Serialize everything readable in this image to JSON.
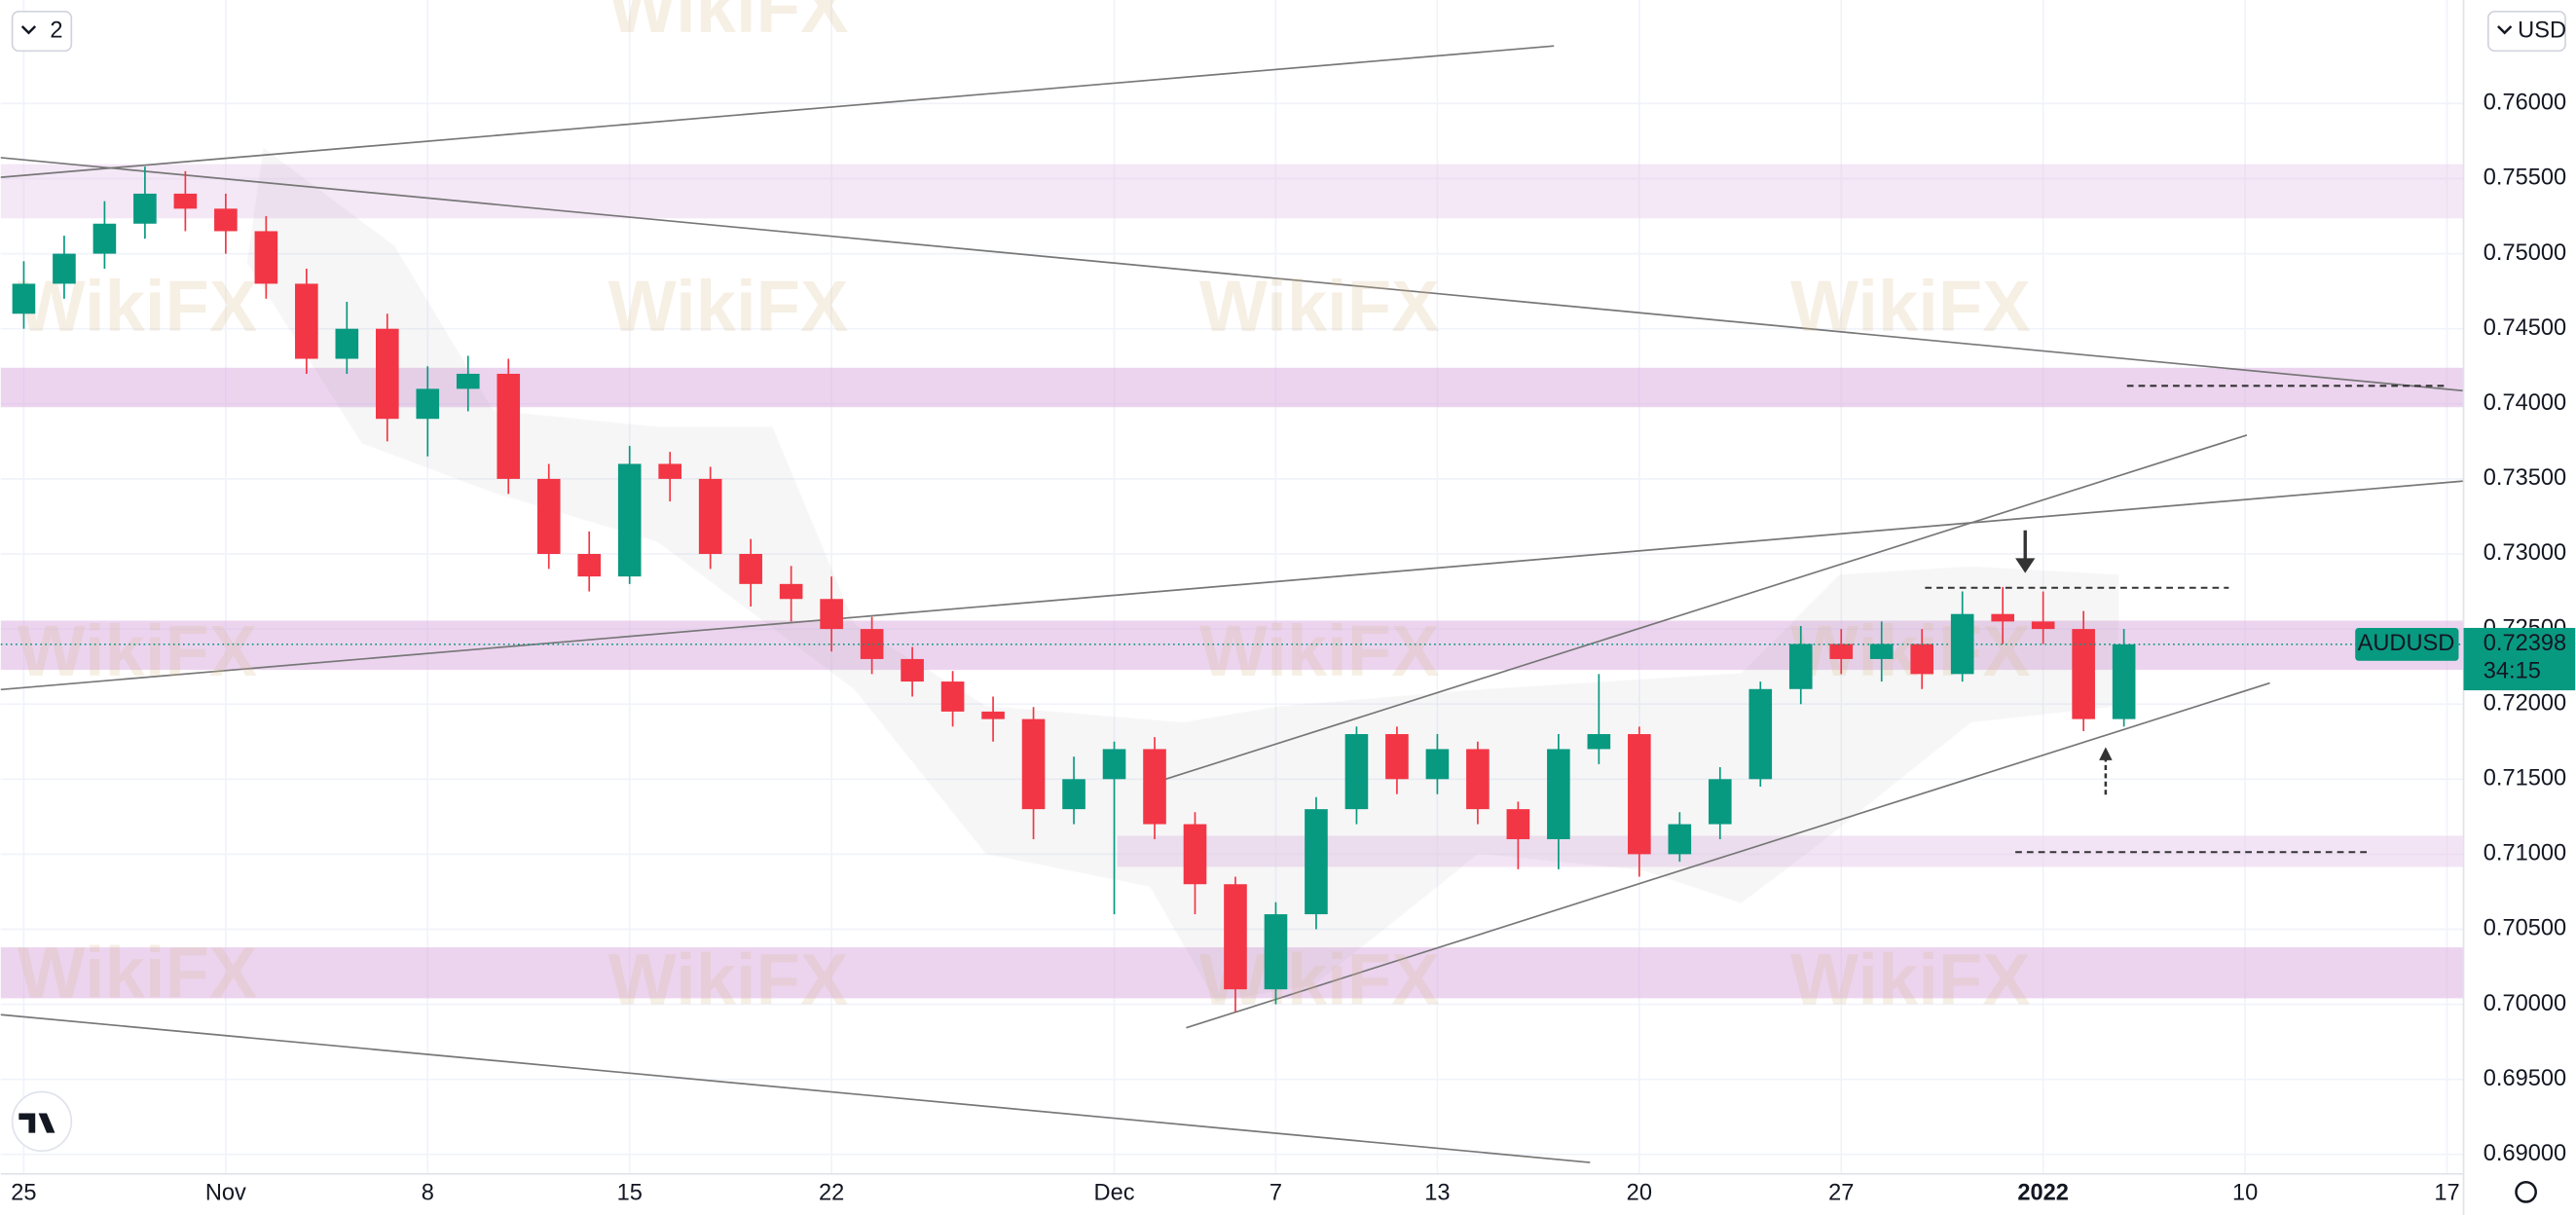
{
  "chart_data": {
    "type": "candlestick",
    "symbol": "AUDUSD",
    "currency": "USD",
    "interval_badge": "2",
    "countdown": "34:15",
    "watermark": "WikiFX",
    "last_price": 0.72398,
    "up_color": "#089981",
    "down_color": "#f23645",
    "x": [
      -5,
      -4,
      -3,
      -2,
      -1,
      0,
      1,
      2,
      3,
      4,
      5,
      6,
      7,
      8,
      9,
      10,
      11,
      12,
      13,
      14,
      15,
      16,
      17,
      18,
      19,
      20,
      21,
      22,
      23,
      24,
      25,
      26,
      27,
      28,
      29,
      30,
      31,
      32,
      33,
      34,
      35,
      36,
      37,
      38,
      39,
      40,
      41,
      42,
      43,
      44,
      45,
      46,
      47
    ],
    "open": [
      0.746,
      0.748,
      0.75,
      0.752,
      0.754,
      0.753,
      0.7515,
      0.748,
      0.743,
      0.745,
      0.739,
      0.741,
      0.742,
      0.735,
      0.73,
      0.7285,
      0.736,
      0.735,
      0.73,
      0.728,
      0.727,
      0.725,
      0.723,
      0.7215,
      0.7195,
      0.719,
      0.713,
      0.715,
      0.717,
      0.712,
      0.708,
      0.701,
      0.706,
      0.713,
      0.718,
      0.715,
      0.717,
      0.713,
      0.711,
      0.717,
      0.718,
      0.71,
      0.712,
      0.715,
      0.721,
      0.724,
      0.723,
      0.724,
      0.722,
      0.726,
      0.7255,
      0.725,
      0.719
    ],
    "high": [
      0.7495,
      0.7512,
      0.7535,
      0.7558,
      0.7555,
      0.754,
      0.7525,
      0.749,
      0.7468,
      0.746,
      0.7425,
      0.7432,
      0.743,
      0.736,
      0.7315,
      0.7372,
      0.7368,
      0.7358,
      0.731,
      0.7292,
      0.7285,
      0.7258,
      0.7238,
      0.7222,
      0.7205,
      0.7198,
      0.7165,
      0.7175,
      0.7178,
      0.7128,
      0.7085,
      0.7068,
      0.7138,
      0.7185,
      0.7185,
      0.718,
      0.7175,
      0.7135,
      0.718,
      0.722,
      0.7185,
      0.7128,
      0.7158,
      0.7215,
      0.7252,
      0.725,
      0.7255,
      0.725,
      0.7275,
      0.7278,
      0.7275,
      0.7262,
      0.725
    ],
    "low": [
      0.745,
      0.747,
      0.749,
      0.751,
      0.7515,
      0.75,
      0.747,
      0.742,
      0.742,
      0.7375,
      0.7365,
      0.7395,
      0.734,
      0.729,
      0.7275,
      0.728,
      0.7335,
      0.729,
      0.7265,
      0.7255,
      0.7235,
      0.722,
      0.7205,
      0.7185,
      0.7175,
      0.711,
      0.712,
      0.706,
      0.711,
      0.706,
      0.6995,
      0.7,
      0.705,
      0.712,
      0.714,
      0.714,
      0.712,
      0.709,
      0.709,
      0.716,
      0.7085,
      0.7095,
      0.711,
      0.7145,
      0.72,
      0.722,
      0.7215,
      0.721,
      0.7215,
      0.724,
      0.724,
      0.7182,
      0.7185
    ],
    "close": [
      0.748,
      0.75,
      0.752,
      0.754,
      0.753,
      0.7515,
      0.748,
      0.743,
      0.745,
      0.739,
      0.741,
      0.742,
      0.735,
      0.73,
      0.7285,
      0.736,
      0.735,
      0.73,
      0.728,
      0.727,
      0.725,
      0.723,
      0.7215,
      0.7195,
      0.719,
      0.713,
      0.715,
      0.717,
      0.712,
      0.708,
      0.701,
      0.706,
      0.713,
      0.718,
      0.715,
      0.717,
      0.713,
      0.711,
      0.717,
      0.718,
      0.71,
      0.712,
      0.715,
      0.721,
      0.724,
      0.723,
      0.724,
      0.722,
      0.726,
      0.7255,
      0.725,
      0.719,
      0.72398
    ],
    "xlim": [
      -5.57,
      55.41
    ],
    "ylim": [
      0.6887,
      0.7669
    ],
    "xticks": [
      {
        "value": -5,
        "label": "25"
      },
      {
        "value": 0,
        "label": "Nov"
      },
      {
        "value": 5,
        "label": "8"
      },
      {
        "value": 10,
        "label": "15"
      },
      {
        "value": 15,
        "label": "22"
      },
      {
        "value": 22,
        "label": "Dec"
      },
      {
        "value": 26,
        "label": "7"
      },
      {
        "value": 30,
        "label": "13"
      },
      {
        "value": 35,
        "label": "20"
      },
      {
        "value": 40,
        "label": "27"
      },
      {
        "value": 45,
        "label": "2022"
      },
      {
        "value": 50,
        "label": "10"
      },
      {
        "value": 55,
        "label": "17"
      }
    ],
    "yticks": [
      {
        "value": 0.69,
        "label": "0.69000"
      },
      {
        "value": 0.695,
        "label": "0.69500"
      },
      {
        "value": 0.7,
        "label": "0.70000"
      },
      {
        "value": 0.705,
        "label": "0.70500"
      },
      {
        "value": 0.71,
        "label": "0.71000"
      },
      {
        "value": 0.715,
        "label": "0.71500"
      },
      {
        "value": 0.72,
        "label": "0.72000"
      },
      {
        "value": 0.725,
        "label": "0.72500"
      },
      {
        "value": 0.73,
        "label": "0.73000"
      },
      {
        "value": 0.735,
        "label": "0.73500"
      },
      {
        "value": 0.74,
        "label": "0.74000"
      },
      {
        "value": 0.745,
        "label": "0.74500"
      },
      {
        "value": 0.75,
        "label": "0.75000"
      },
      {
        "value": 0.755,
        "label": "0.75500"
      },
      {
        "value": 0.76,
        "label": "0.76000"
      }
    ],
    "grid": true
  }
}
